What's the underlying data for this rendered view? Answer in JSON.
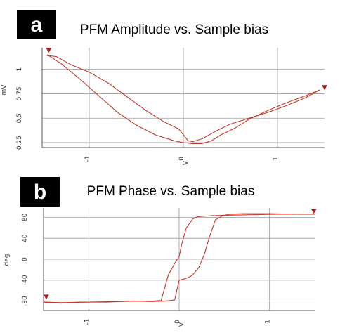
{
  "colors": {
    "trace": "#c0392b",
    "marker": "#a52222",
    "grid": "#9a9a9a",
    "badge": "#000000"
  },
  "chart_data": [
    {
      "panel_label": "a",
      "type": "line",
      "title": "PFM Amplitude vs. Sample bias",
      "xlabel": "V",
      "ylabel": "mV",
      "xlim": [
        -1.5,
        1.5
      ],
      "ylim": [
        0.2,
        1.22
      ],
      "xticks": [
        {
          "v": -1,
          "t": "-1"
        },
        {
          "v": 0,
          "t": "0"
        },
        {
          "v": 1,
          "t": "1"
        }
      ],
      "yticks": [
        {
          "v": 0.25,
          "t": "0.25"
        },
        {
          "v": 0.5,
          "t": "0.5"
        },
        {
          "v": 0.75,
          "t": "0.75"
        },
        {
          "v": 1,
          "t": "1"
        }
      ],
      "grid": true,
      "markers": [
        {
          "x": -1.43,
          "y": 1.19
        },
        {
          "x": 1.5,
          "y": 0.81
        }
      ],
      "series": [
        {
          "x": [
            -1.45,
            -1.35,
            -1.2,
            -1.0,
            -0.8,
            -0.6,
            -0.4,
            -0.2,
            -0.05,
            0.05,
            0.1,
            0.2,
            0.35,
            0.5,
            0.7,
            0.9,
            1.1,
            1.3,
            1.45
          ],
          "y": [
            1.14,
            1.13,
            1.05,
            0.97,
            0.86,
            0.72,
            0.58,
            0.46,
            0.39,
            0.27,
            0.26,
            0.29,
            0.37,
            0.44,
            0.5,
            0.56,
            0.63,
            0.71,
            0.79
          ]
        },
        {
          "x": [
            1.45,
            1.3,
            1.1,
            0.9,
            0.7,
            0.55,
            0.4,
            0.3,
            0.2,
            0.1,
            0.0,
            -0.1,
            -0.3,
            -0.5,
            -0.7,
            -0.9,
            -1.1,
            -1.3,
            -1.45
          ],
          "y": [
            0.79,
            0.73,
            0.66,
            0.58,
            0.49,
            0.4,
            0.33,
            0.27,
            0.24,
            0.24,
            0.25,
            0.27,
            0.33,
            0.43,
            0.56,
            0.73,
            0.9,
            1.06,
            1.15
          ]
        }
      ]
    },
    {
      "panel_label": "b",
      "type": "line",
      "title": "PFM Phase vs. Sample bias",
      "xlabel": "V",
      "ylabel": "deg",
      "xlim": [
        -1.5,
        1.5
      ],
      "ylim": [
        -98,
        98
      ],
      "xticks": [
        {
          "v": -1,
          "t": "-1"
        },
        {
          "v": 0,
          "t": "0"
        },
        {
          "v": 1,
          "t": "1"
        }
      ],
      "yticks": [
        {
          "v": -80,
          "t": "-80"
        },
        {
          "v": -40,
          "t": "-40"
        },
        {
          "v": 0,
          "t": "0"
        },
        {
          "v": 40,
          "t": "40"
        },
        {
          "v": 80,
          "t": "80"
        }
      ],
      "grid": true,
      "markers": [
        {
          "x": -1.47,
          "y": -73
        },
        {
          "x": 1.49,
          "y": 91
        }
      ],
      "series": [
        {
          "x": [
            -1.5,
            -1.3,
            -1.0,
            -0.7,
            -0.4,
            -0.3,
            -0.2,
            -0.12,
            -0.05,
            0.0,
            0.03,
            0.08,
            0.15,
            0.2,
            0.25,
            0.35,
            0.5,
            0.8,
            1.1,
            1.3,
            1.5
          ],
          "y": [
            -82,
            -83,
            -82,
            -81,
            -80,
            -80,
            -79,
            -30,
            -8,
            5,
            30,
            60,
            77,
            81,
            82,
            83,
            84,
            85,
            86,
            86,
            86
          ]
        },
        {
          "x": [
            1.5,
            1.3,
            1.0,
            0.7,
            0.55,
            0.48,
            0.4,
            0.33,
            0.28,
            0.22,
            0.15,
            0.1,
            0.05,
            0.0,
            -0.05,
            -0.15,
            -0.3,
            -0.5,
            -0.8,
            -1.1,
            -1.3,
            -1.5
          ],
          "y": [
            86,
            86,
            87,
            87,
            86,
            83,
            75,
            40,
            10,
            -15,
            -30,
            -35,
            -38,
            -40,
            -78,
            -80,
            -81,
            -80,
            -82,
            -82,
            -84,
            -83
          ]
        }
      ]
    }
  ]
}
